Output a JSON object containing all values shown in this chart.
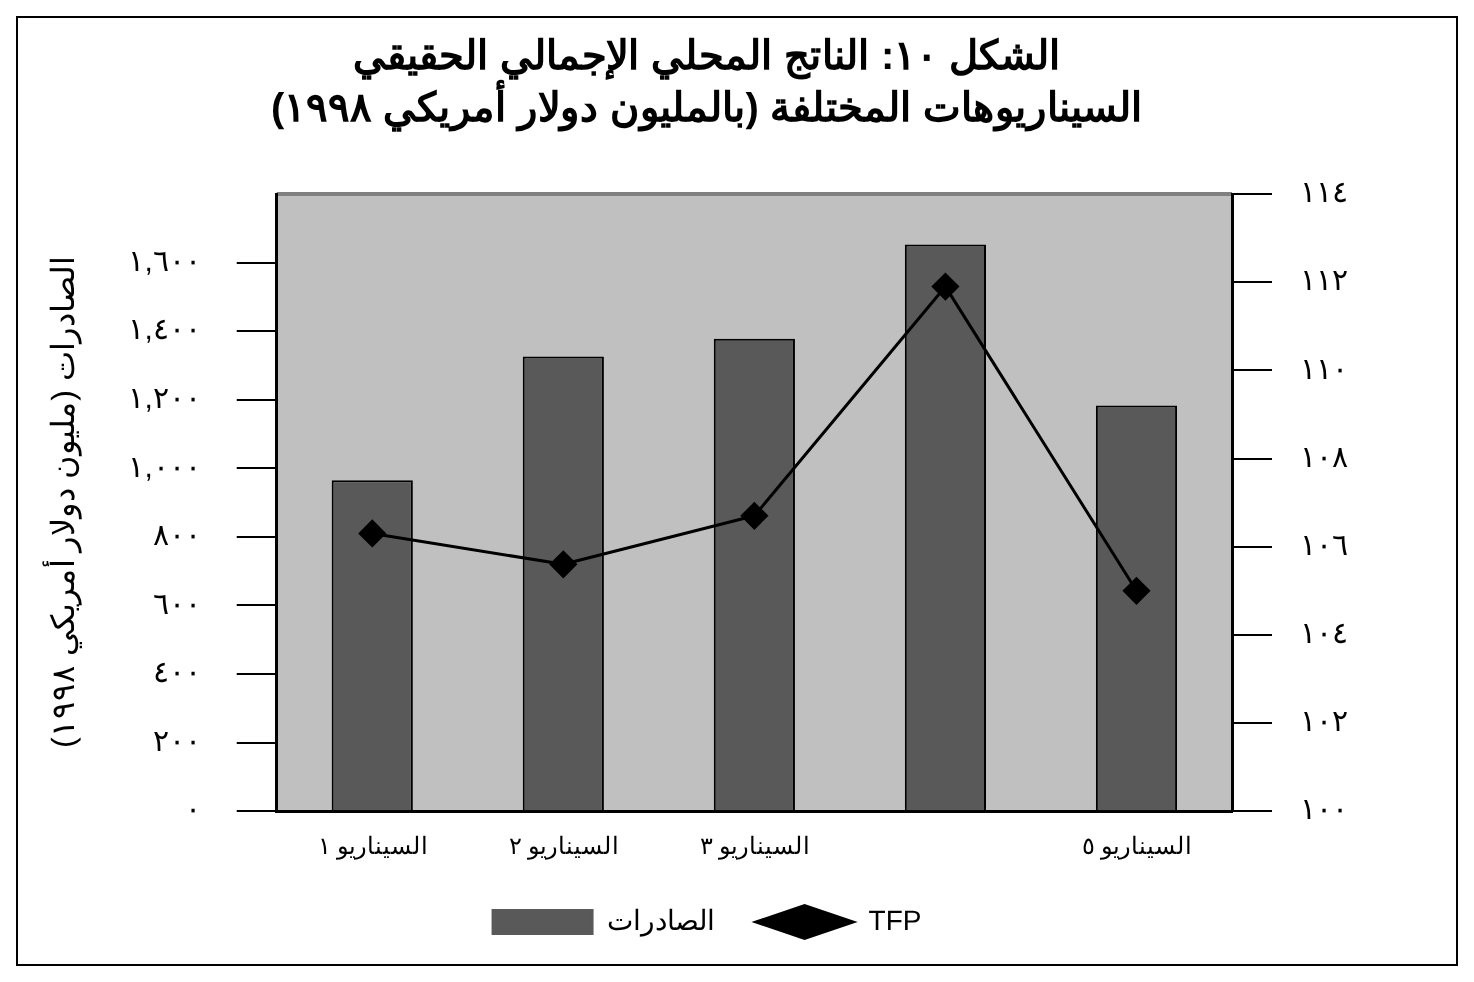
{
  "chart_data": {
    "type": "bar",
    "title": "الشكل ١٠: الناتج المحلي الإجمالي الحقيقي",
    "subtitle": "السيناريوهات المختلفة (بالمليون دولار أمريكي ١٩٩٨)",
    "ylabel": "الصادرات (مليون دولار أمريكي ١٩٩٨)",
    "categories": [
      "السيناريو ١",
      "السيناريو ٢",
      "السيناريو ٣",
      null,
      "السيناريو ٥"
    ],
    "series": [
      {
        "name": "الصادرات",
        "color": "#595959",
        "values": [
          965,
          1326,
          1378,
          1653,
          1183
        ]
      },
      {
        "name": "TFP",
        "type": "line",
        "axis": "y2",
        "color": "#000000",
        "values": [
          106.3,
          105.6,
          106.7,
          111.9,
          105.0
        ]
      }
    ],
    "ylim": [
      0,
      1800
    ],
    "yticks": [
      {
        "value": 0,
        "label": "٠"
      },
      {
        "value": 200,
        "label": "٢٠٠"
      },
      {
        "value": 400,
        "label": "٤٠٠"
      },
      {
        "value": 600,
        "label": "٦٠٠"
      },
      {
        "value": 800,
        "label": "٨٠٠"
      },
      {
        "value": 1000,
        "label": "١,٠٠٠"
      },
      {
        "value": 1200,
        "label": "١,٢٠٠"
      },
      {
        "value": 1400,
        "label": "١,٤٠٠"
      },
      {
        "value": 1600,
        "label": "١,٦٠٠"
      }
    ],
    "y2lim": [
      100,
      114
    ],
    "y2ticks": [
      {
        "value": 100,
        "label": "١٠٠"
      },
      {
        "value": 102,
        "label": "١٠٢"
      },
      {
        "value": 104,
        "label": "١٠٤"
      },
      {
        "value": 106,
        "label": "١٠٦"
      },
      {
        "value": 108,
        "label": "١٠٨"
      },
      {
        "value": 110,
        "label": "١١٠"
      },
      {
        "value": 112,
        "label": "١١٢"
      },
      {
        "value": 114,
        "label": "١١٤"
      }
    ],
    "grid": false,
    "legend": "bottom",
    "marker": "diamond",
    "line_style": "solid"
  }
}
